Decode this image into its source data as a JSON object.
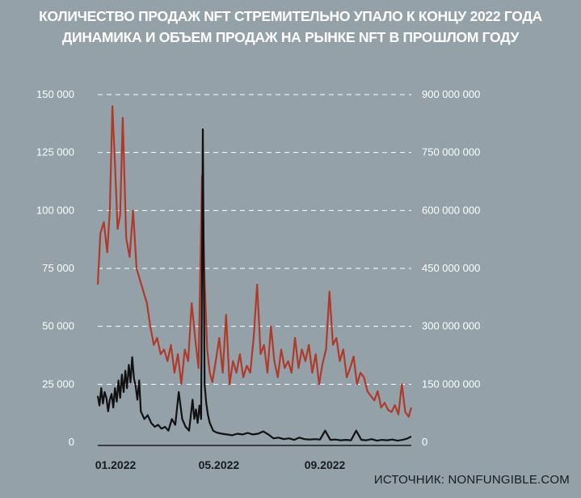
{
  "header": {
    "title": "КОЛИЧЕСТВО ПРОДАЖ NFT СТРЕМИТЕЛЬНО УПАЛО К КОНЦУ 2022 ГОДА",
    "subtitle": "ДИНАМИКА И ОБЪЕМ ПРОДАЖ НА РЫНКЕ NFT В ПРОШЛОМ ГОДУ"
  },
  "source": "ИСТОЧНИК: NONFUNGIBLE.COM",
  "colors": {
    "background": "#94a1a9",
    "sales_count": "#b03a2a",
    "sales_volume": "#111111",
    "grid": "#ffffff"
  },
  "chart_data": {
    "type": "line",
    "grid": "dashed-horizontal",
    "x_ticks": [
      "01.2022",
      "05.2022",
      "09.2022"
    ],
    "y_left": {
      "ylim": [
        0,
        150000
      ],
      "ticks": [
        "0",
        "25 000",
        "50 000",
        "75 000",
        "100 000",
        "125 000",
        "150 000"
      ]
    },
    "y_right": {
      "ylim": [
        0,
        900000000
      ],
      "ticks": [
        "0",
        "150 000 000",
        "300 000 000",
        "450 000 000",
        "600 000 000",
        "750 000 000",
        "900 000 000"
      ]
    },
    "x_unit": "day of 2022",
    "series": [
      {
        "axis": "left",
        "color": "#b03a2a",
        "x": [
          1,
          4,
          8,
          12,
          15,
          18,
          21,
          24,
          27,
          30,
          34,
          38,
          42,
          46,
          50,
          54,
          58,
          62,
          66,
          70,
          74,
          78,
          82,
          86,
          90,
          94,
          98,
          102,
          106,
          110,
          114,
          118,
          122,
          125,
          128,
          131,
          134,
          138,
          142,
          146,
          150,
          154,
          158,
          162,
          166,
          170,
          174,
          178,
          182,
          186,
          190,
          194,
          198,
          202,
          206,
          210,
          214,
          218,
          222,
          226,
          230,
          234,
          238,
          242,
          246,
          250,
          254,
          258,
          262,
          266,
          270,
          274,
          278,
          282,
          286,
          290,
          294,
          298,
          302,
          306,
          310,
          314,
          318,
          322,
          326,
          330,
          334,
          338,
          342,
          346,
          350,
          354,
          358,
          362,
          365
        ],
        "values": [
          68000,
          90000,
          95000,
          82000,
          100000,
          145000,
          120000,
          92000,
          98000,
          140000,
          88000,
          80000,
          100000,
          75000,
          70000,
          65000,
          60000,
          50000,
          42000,
          45000,
          38000,
          40000,
          35000,
          42000,
          30000,
          38000,
          25000,
          40000,
          35000,
          60000,
          45000,
          32000,
          115000,
          70000,
          40000,
          30000,
          26000,
          35000,
          45000,
          30000,
          55000,
          25000,
          35000,
          30000,
          38000,
          28000,
          33000,
          30000,
          45000,
          68000,
          38000,
          42000,
          30000,
          50000,
          35000,
          28000,
          40000,
          32000,
          35000,
          30000,
          45000,
          32000,
          40000,
          35000,
          42000,
          30000,
          38000,
          25000,
          34000,
          40000,
          65000,
          42000,
          45000,
          35000,
          40000,
          28000,
          32000,
          37000,
          25000,
          30000,
          28000,
          22000,
          20000,
          18000,
          22000,
          15000,
          17000,
          14000,
          13000,
          16000,
          12000,
          25000,
          13000,
          11000,
          15000
        ]
      },
      {
        "axis": "right",
        "color": "#111111",
        "x": [
          1,
          3,
          5,
          7,
          9,
          11,
          13,
          15,
          17,
          19,
          21,
          23,
          25,
          27,
          29,
          31,
          33,
          35,
          37,
          39,
          41,
          43,
          45,
          47,
          49,
          51,
          55,
          59,
          63,
          67,
          71,
          75,
          79,
          83,
          87,
          91,
          95,
          99,
          103,
          107,
          111,
          113,
          115,
          117,
          119,
          121,
          123,
          125,
          127,
          129,
          131,
          135,
          139,
          145,
          151,
          157,
          163,
          169,
          175,
          181,
          187,
          193,
          199,
          205,
          211,
          217,
          223,
          229,
          235,
          241,
          247,
          253,
          259,
          265,
          271,
          277,
          283,
          289,
          295,
          301,
          307,
          313,
          319,
          325,
          331,
          337,
          343,
          349,
          355,
          361,
          365
        ],
        "values": [
          120000000,
          95000000,
          140000000,
          100000000,
          130000000,
          115000000,
          80000000,
          110000000,
          125000000,
          90000000,
          140000000,
          105000000,
          160000000,
          115000000,
          175000000,
          130000000,
          185000000,
          140000000,
          200000000,
          155000000,
          220000000,
          165000000,
          145000000,
          110000000,
          160000000,
          80000000,
          60000000,
          70000000,
          50000000,
          40000000,
          45000000,
          35000000,
          40000000,
          30000000,
          60000000,
          45000000,
          130000000,
          60000000,
          40000000,
          30000000,
          110000000,
          60000000,
          85000000,
          50000000,
          95000000,
          60000000,
          810000000,
          150000000,
          100000000,
          70000000,
          50000000,
          30000000,
          25000000,
          22000000,
          20000000,
          18000000,
          22000000,
          20000000,
          24000000,
          20000000,
          22000000,
          28000000,
          20000000,
          10000000,
          12000000,
          8000000,
          10000000,
          6000000,
          12000000,
          8000000,
          7000000,
          8000000,
          7000000,
          30000000,
          6000000,
          7000000,
          5000000,
          6000000,
          5000000,
          30000000,
          6000000,
          5000000,
          8000000,
          4000000,
          6000000,
          5000000,
          7000000,
          4000000,
          6000000,
          10000000,
          15000000
        ]
      }
    ]
  }
}
